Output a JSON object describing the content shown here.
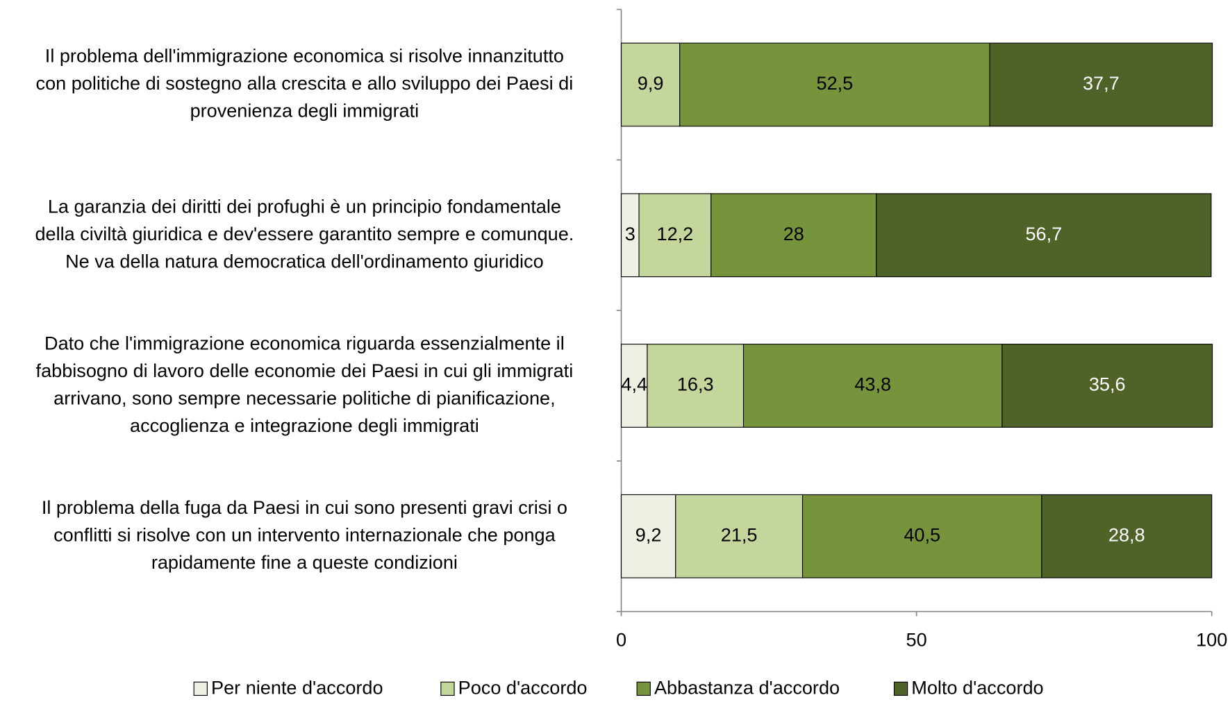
{
  "chart_data": {
    "type": "stacked-bar-horizontal",
    "categories": [
      [
        "Il problema dell'immigrazione economica si risolve innanzitutto",
        "con politiche di sostegno alla crescita e allo sviluppo dei Paesi di",
        "provenienza degli immigrati"
      ],
      [
        "La garanzia dei diritti dei profughi è un principio fondamentale",
        "della civiltà giuridica e dev'essere garantito sempre e comunque.",
        "Ne va della natura democratica dell'ordinamento giuridico"
      ],
      [
        "Dato che l'immigrazione economica riguarda essenzialmente il",
        "fabbisogno di lavoro delle economie dei Paesi in cui gli immigrati",
        "arrivano, sono sempre necessarie politiche di pianificazione,",
        "accoglienza e integrazione degli immigrati"
      ],
      [
        "Il problema della fuga da Paesi in cui sono presenti gravi crisi o",
        "conflitti si risolve con un intervento internazionale che ponga",
        "rapidamente fine a queste condizioni"
      ]
    ],
    "series": [
      {
        "name": "Per niente d'accordo",
        "color": "#eef0e4",
        "label_color": "#000000",
        "values": [
          null,
          3,
          4.4,
          9.2
        ],
        "value_labels": [
          null,
          "3",
          "4,4",
          "9,2"
        ]
      },
      {
        "name": "Poco d'accordo",
        "color": "#c4d69c",
        "label_color": "#000000",
        "values": [
          9.9,
          12.2,
          16.3,
          21.5
        ],
        "value_labels": [
          "9,9",
          "12,2",
          "16,3",
          "21,5"
        ]
      },
      {
        "name": "Abbastanza d'accordo",
        "color": "#77933c",
        "label_color": "#000000",
        "values": [
          52.5,
          28,
          43.8,
          40.5
        ],
        "value_labels": [
          "52,5",
          "28",
          "43,8",
          "40,5"
        ]
      },
      {
        "name": "Molto d'accordo",
        "color": "#4f6228",
        "label_color": "#ffffff",
        "values": [
          37.7,
          56.7,
          35.6,
          28.8
        ],
        "value_labels": [
          "37,7",
          "56,7",
          "35,6",
          "28,8"
        ]
      }
    ],
    "xlim": [
      0,
      100
    ],
    "xticks": [
      0,
      50,
      100
    ],
    "legend": "bottom"
  }
}
